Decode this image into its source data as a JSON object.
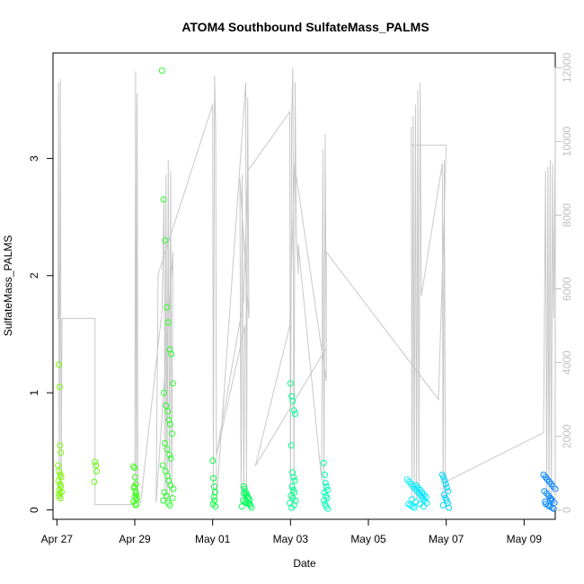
{
  "chart_data": {
    "type": "scatter",
    "title": "ATOM4 Southbound SulfateMass_PALMS",
    "xlabel": "Date",
    "ylabel": "SulfateMass_PALMS",
    "xlim": [
      -0.1,
      12.8
    ],
    "ylim": [
      -0.08,
      3.9
    ],
    "right_ylim": [
      -250,
      12400
    ],
    "x_ticks": [
      {
        "value": 0,
        "label": "Apr 27"
      },
      {
        "value": 2,
        "label": "Apr 29"
      },
      {
        "value": 4,
        "label": "May 01"
      },
      {
        "value": 6,
        "label": "May 03"
      },
      {
        "value": 8,
        "label": "May 05"
      },
      {
        "value": 10,
        "label": "May 07"
      },
      {
        "value": 12,
        "label": "May 09"
      }
    ],
    "y_ticks": [
      {
        "value": 0,
        "label": "0"
      },
      {
        "value": 1,
        "label": "1"
      },
      {
        "value": 2,
        "label": "2"
      },
      {
        "value": 3,
        "label": "3"
      }
    ],
    "right_ticks": [
      {
        "value": 0,
        "label": "0"
      },
      {
        "value": 2000,
        "label": "2000"
      },
      {
        "value": 4000,
        "label": "4000"
      },
      {
        "value": 6000,
        "label": "6000"
      },
      {
        "value": 8000,
        "label": "8000"
      },
      {
        "value": 10000,
        "label": "10000"
      },
      {
        "value": 12000,
        "label": "12000"
      }
    ],
    "altitude_trace": {
      "name": "altitude",
      "color": "#c8c8c8",
      "points": [
        [
          0.0,
          5200
        ],
        [
          0.03,
          5200
        ],
        [
          0.04,
          11600
        ],
        [
          0.06,
          300
        ],
        [
          0.09,
          11700
        ],
        [
          0.11,
          250
        ],
        [
          0.13,
          5200
        ],
        [
          0.98,
          5200
        ],
        [
          0.98,
          150
        ],
        [
          2.0,
          150
        ],
        [
          2.02,
          11900
        ],
        [
          2.04,
          300
        ],
        [
          2.06,
          11300
        ],
        [
          2.08,
          300
        ],
        [
          2.1,
          200
        ],
        [
          2.15,
          200
        ],
        [
          2.7,
          5400
        ],
        [
          2.75,
          8500
        ],
        [
          2.78,
          250
        ],
        [
          2.8,
          9100
        ],
        [
          2.83,
          250
        ],
        [
          2.86,
          9500
        ],
        [
          2.89,
          250
        ],
        [
          2.92,
          9200
        ],
        [
          2.95,
          300
        ],
        [
          2.98,
          7000
        ],
        [
          2.55,
          200
        ],
        [
          2.6,
          6400
        ],
        [
          4.0,
          11000
        ],
        [
          4.02,
          300
        ],
        [
          4.05,
          11800
        ],
        [
          4.08,
          10300
        ],
        [
          4.1,
          250
        ],
        [
          4.85,
          11600
        ],
        [
          4.87,
          300
        ],
        [
          4.9,
          11200
        ],
        [
          4.93,
          5200
        ],
        [
          4.7,
          9000
        ],
        [
          4.73,
          300
        ],
        [
          4.76,
          9100
        ],
        [
          4.8,
          350
        ],
        [
          4.83,
          5000
        ],
        [
          4.1,
          1500
        ],
        [
          4.8,
          5700
        ],
        [
          4.9,
          9200
        ],
        [
          5.98,
          10800
        ],
        [
          6.0,
          300
        ],
        [
          6.03,
          10700
        ],
        [
          6.06,
          12000
        ],
        [
          6.09,
          350
        ],
        [
          6.12,
          11600
        ],
        [
          6.15,
          7500
        ],
        [
          6.2,
          6400
        ],
        [
          6.2,
          7200
        ],
        [
          6.8,
          800
        ],
        [
          6.83,
          9800
        ],
        [
          6.86,
          500
        ],
        [
          6.89,
          10200
        ],
        [
          6.92,
          4400
        ],
        [
          5.1,
          1200
        ],
        [
          5.98,
          5000
        ],
        [
          6.1,
          9400
        ],
        [
          6.92,
          3500
        ],
        [
          6.92,
          7000
        ],
        [
          9.8,
          3000
        ],
        [
          10.0,
          9900
        ],
        [
          9.1,
          9900
        ],
        [
          9.1,
          10400
        ],
        [
          9.12,
          300
        ],
        [
          9.15,
          10700
        ],
        [
          9.18,
          300
        ],
        [
          9.21,
          11000
        ],
        [
          9.24,
          300
        ],
        [
          9.27,
          11400
        ],
        [
          9.3,
          300
        ],
        [
          9.33,
          11600
        ],
        [
          9.36,
          5800
        ],
        [
          9.9,
          9400
        ],
        [
          9.92,
          300
        ],
        [
          9.95,
          9500
        ],
        [
          9.98,
          300
        ],
        [
          10.0,
          800
        ],
        [
          10.05,
          800
        ],
        [
          12.5,
          2100
        ],
        [
          12.55,
          9200
        ],
        [
          12.58,
          300
        ],
        [
          12.61,
          9300
        ],
        [
          12.64,
          300
        ],
        [
          12.67,
          9500
        ],
        [
          12.7,
          300
        ],
        [
          12.73,
          9400
        ],
        [
          12.76,
          5200
        ],
        [
          12.8,
          9700
        ],
        [
          12.8,
          4800
        ]
      ]
    },
    "series": [
      {
        "name": "SulfateMass_PALMS",
        "color_scale": [
          "#7cfc00",
          "#00ff40",
          "#00ffff",
          "#0080ff"
        ],
        "x": [
          0.05,
          0.07,
          0.08,
          0.1,
          0.03,
          0.06,
          0.09,
          0.11,
          0.04,
          0.08,
          0.1,
          0.06,
          0.07,
          0.05,
          0.09,
          0.12,
          0.98,
          1.0,
          1.02,
          0.96,
          1.96,
          2.0,
          2.01,
          2.03,
          1.98,
          2.02,
          2.04,
          2.0,
          2.05,
          1.97,
          2.01,
          2.03,
          1.99,
          2.02,
          2.04,
          2.7,
          2.74,
          2.78,
          2.82,
          2.86,
          2.9,
          2.94,
          2.98,
          2.75,
          2.8,
          2.85,
          2.88,
          2.91,
          2.96,
          2.77,
          2.83,
          2.89,
          2.93,
          2.72,
          2.79,
          2.84,
          2.87,
          2.92,
          2.99,
          2.76,
          2.81,
          2.97,
          2.73,
          2.86,
          2.9,
          4.0,
          4.02,
          4.04,
          4.06,
          4.03,
          4.05,
          4.01,
          4.07,
          4.8,
          4.82,
          4.85,
          4.88,
          4.9,
          4.95,
          4.78,
          4.84,
          4.87,
          4.92,
          4.97,
          4.75,
          4.81,
          4.86,
          4.91,
          4.94,
          5.0,
          6.0,
          6.03,
          6.06,
          6.09,
          6.12,
          6.02,
          6.05,
          6.08,
          6.11,
          6.04,
          6.07,
          6.1,
          6.01,
          6.06,
          6.13,
          5.98,
          6.09,
          6.03,
          6.85,
          6.88,
          6.9,
          6.93,
          6.95,
          6.87,
          6.91,
          6.94,
          6.86,
          6.89,
          6.92,
          6.96,
          9.0,
          9.05,
          9.1,
          9.15,
          9.2,
          9.25,
          9.3,
          9.35,
          9.4,
          9.45,
          9.5,
          9.03,
          9.08,
          9.13,
          9.18,
          9.23,
          9.28,
          9.33,
          9.38,
          9.43,
          9.48,
          9.12,
          9.22,
          9.32,
          9.42,
          9.9,
          9.93,
          9.96,
          9.99,
          10.02,
          10.05,
          9.95,
          9.98,
          10.01,
          10.04,
          9.92,
          10.07,
          12.5,
          12.55,
          12.6,
          12.65,
          12.7,
          12.75,
          12.8,
          12.52,
          12.58,
          12.63,
          12.68,
          12.73,
          12.78,
          12.56,
          12.62,
          12.66,
          12.72,
          12.76,
          12.54,
          12.7
        ],
        "y": [
          1.24,
          1.05,
          0.55,
          0.49,
          0.38,
          0.33,
          0.3,
          0.28,
          0.25,
          0.22,
          0.2,
          0.17,
          0.14,
          0.12,
          0.1,
          0.15,
          0.41,
          0.38,
          0.33,
          0.24,
          0.37,
          0.36,
          0.28,
          0.22,
          0.19,
          0.16,
          0.13,
          0.11,
          0.09,
          0.07,
          0.05,
          0.04,
          0.2,
          0.15,
          0.1,
          3.75,
          2.65,
          2.3,
          1.73,
          1.6,
          1.37,
          1.33,
          1.08,
          1.0,
          0.89,
          0.84,
          0.77,
          0.73,
          0.65,
          0.57,
          0.52,
          0.47,
          0.44,
          0.38,
          0.33,
          0.29,
          0.25,
          0.21,
          0.18,
          0.15,
          0.12,
          0.1,
          0.08,
          0.06,
          0.04,
          0.42,
          0.27,
          0.2,
          0.15,
          0.11,
          0.08,
          0.05,
          0.03,
          0.2,
          0.18,
          0.15,
          0.13,
          0.11,
          0.09,
          0.08,
          0.07,
          0.06,
          0.05,
          0.04,
          0.03,
          0.14,
          0.12,
          0.1,
          0.06,
          0.02,
          1.08,
          0.97,
          0.93,
          0.85,
          0.82,
          0.55,
          0.32,
          0.28,
          0.25,
          0.2,
          0.17,
          0.15,
          0.12,
          0.1,
          0.08,
          0.06,
          0.04,
          0.02,
          0.4,
          0.3,
          0.23,
          0.2,
          0.17,
          0.15,
          0.12,
          0.1,
          0.08,
          0.05,
          0.03,
          0.01,
          0.26,
          0.24,
          0.22,
          0.2,
          0.18,
          0.16,
          0.14,
          0.12,
          0.1,
          0.08,
          0.06,
          0.05,
          0.04,
          0.03,
          0.02,
          0.21,
          0.19,
          0.17,
          0.15,
          0.13,
          0.11,
          0.09,
          0.07,
          0.05,
          0.03,
          0.3,
          0.28,
          0.25,
          0.22,
          0.19,
          0.16,
          0.13,
          0.1,
          0.08,
          0.06,
          0.04,
          0.02,
          0.3,
          0.28,
          0.26,
          0.24,
          0.22,
          0.2,
          0.18,
          0.16,
          0.14,
          0.12,
          0.1,
          0.08,
          0.06,
          0.05,
          0.04,
          0.03,
          0.02,
          0.01,
          0.07,
          0.09
        ]
      }
    ]
  }
}
